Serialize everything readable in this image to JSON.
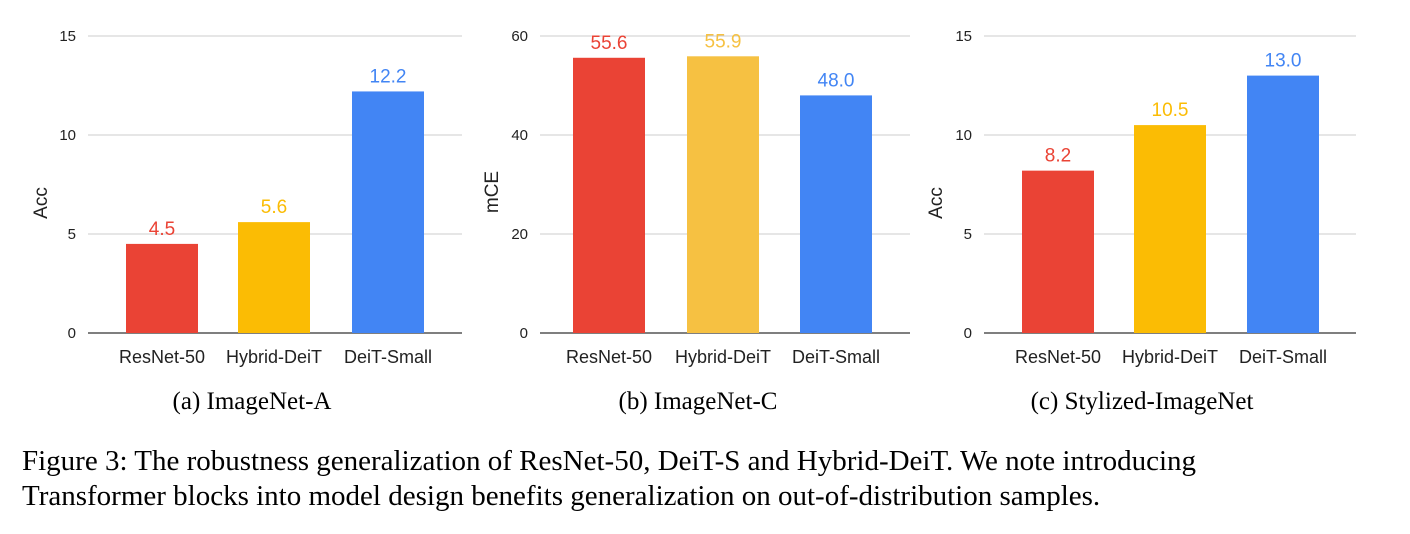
{
  "chart_data": [
    {
      "type": "bar",
      "title": "",
      "ylabel": "Acc",
      "xlabel": "",
      "ylim": [
        0,
        15
      ],
      "yticks": [
        0,
        5,
        10,
        15
      ],
      "ytick_labels": [
        "0",
        "5",
        "10",
        "15"
      ],
      "categories": [
        "ResNet-50",
        "Hybrid-DeiT",
        "DeiT-Small"
      ],
      "values": [
        4.5,
        5.6,
        12.2
      ],
      "value_labels": [
        "4.5",
        "5.6",
        "12.2"
      ],
      "colors": [
        "#ea4335",
        "#fbbc04",
        "#4285f4"
      ],
      "grid": true
    },
    {
      "type": "bar",
      "title": "",
      "ylabel": "mCE",
      "xlabel": "",
      "ylim": [
        0,
        60
      ],
      "yticks": [
        0,
        20,
        40,
        60
      ],
      "ytick_labels": [
        "0",
        "20",
        "40",
        "60"
      ],
      "categories": [
        "ResNet-50",
        "Hybrid-DeiT",
        "DeiT-Small"
      ],
      "values": [
        55.6,
        55.9,
        48.0
      ],
      "value_labels": [
        "55.6",
        "55.9",
        "48.0"
      ],
      "colors": [
        "#ea4335",
        "#f6c142",
        "#4285f4"
      ],
      "grid": true
    },
    {
      "type": "bar",
      "title": "",
      "ylabel": "Acc",
      "xlabel": "",
      "ylim": [
        0,
        15
      ],
      "yticks": [
        0,
        5,
        10,
        15
      ],
      "ytick_labels": [
        "0",
        "5",
        "10",
        "15"
      ],
      "categories": [
        "ResNet-50",
        "Hybrid-DeiT",
        "DeiT-Small"
      ],
      "values": [
        8.2,
        10.5,
        13.0
      ],
      "value_labels": [
        "8.2",
        "10.5",
        "13.0"
      ],
      "colors": [
        "#ea4335",
        "#fbbc04",
        "#4285f4"
      ],
      "grid": true
    }
  ],
  "subcaptions": [
    "(a) ImageNet-A",
    "(b) ImageNet-C",
    "(c) Stylized-ImageNet"
  ],
  "caption": {
    "line1": "Figure 3: The robustness generalization of ResNet-50, DeiT-S and Hybrid-DeiT. We note introducing",
    "line2": "Transformer blocks into model design benefits generalization on out-of-distribution samples."
  }
}
